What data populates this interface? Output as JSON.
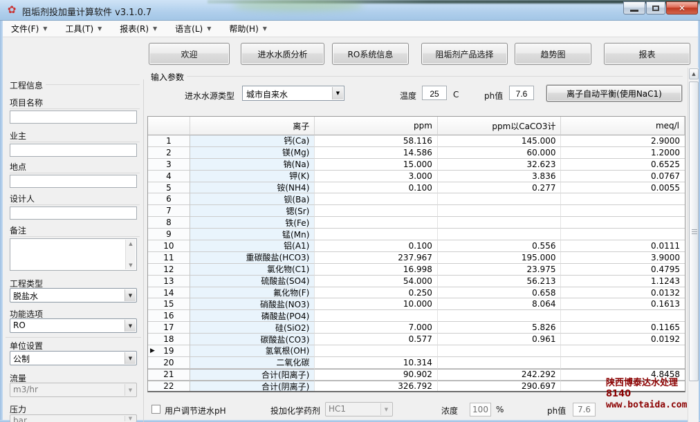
{
  "window": {
    "title": "阻垢剂投加量计算软件 v3.1.0.7",
    "controls": {
      "minimize": "最小化",
      "maximize": "最大化",
      "close": "关闭",
      "close_glyph": "✕"
    }
  },
  "menu": {
    "items": [
      {
        "id": "file",
        "label": "文件(F)"
      },
      {
        "id": "tools",
        "label": "工具(T)"
      },
      {
        "id": "reports",
        "label": "报表(R)"
      },
      {
        "id": "language",
        "label": "语言(L)"
      },
      {
        "id": "help",
        "label": "帮助(H)"
      }
    ]
  },
  "tabs": {
    "items": [
      {
        "id": "welcome",
        "label": "欢迎"
      },
      {
        "id": "feed-water-analysis",
        "label": "进水水质分析"
      },
      {
        "id": "ro-system-info",
        "label": "RO系统信息"
      },
      {
        "id": "antiscalant-selection",
        "label": "阻垢剂产品选择"
      },
      {
        "id": "trend-chart",
        "label": "趋势图"
      },
      {
        "id": "report",
        "label": "报表"
      }
    ]
  },
  "sidebar": {
    "group_label": "工程信息",
    "fields": [
      {
        "id": "project-name",
        "label": "项目名称",
        "value": ""
      },
      {
        "id": "owner",
        "label": "业主",
        "value": ""
      },
      {
        "id": "location",
        "label": "地点",
        "value": ""
      },
      {
        "id": "designer",
        "label": "设计人",
        "value": ""
      }
    ],
    "notes": {
      "label": "备注",
      "value": ""
    },
    "project_type": {
      "label": "工程类型",
      "value": "脱盐水"
    },
    "function_option": {
      "label": "功能选项",
      "value": "RO"
    },
    "units": {
      "label": "单位设置",
      "value": "公制"
    },
    "flow": {
      "label": "流量",
      "value": "m3/hr"
    },
    "pressure": {
      "label": "压力",
      "value": "bar"
    }
  },
  "params": {
    "group_label": "输入参数",
    "source_label": "进水水源类型",
    "source_value": "城市自来水",
    "temp_label": "温度",
    "temp_value": "25",
    "temp_unit": "C",
    "ph_label": "ph值",
    "ph_value": "7.6",
    "balance_button": "离子自动平衡(使用NaC1)"
  },
  "table": {
    "headers": [
      "",
      "离子",
      "ppm",
      "ppm以CaCO3计",
      "meq/l"
    ],
    "rows": [
      {
        "num": "1",
        "ion": "钙(Ca)",
        "ppm": "58.116",
        "caco3": "145.000",
        "meq": "2.9000",
        "marker": false,
        "sum": false
      },
      {
        "num": "2",
        "ion": "镁(Mg)",
        "ppm": "14.586",
        "caco3": "60.000",
        "meq": "1.2000",
        "marker": false,
        "sum": false
      },
      {
        "num": "3",
        "ion": "钠(Na)",
        "ppm": "15.000",
        "caco3": "32.623",
        "meq": "0.6525",
        "marker": false,
        "sum": false
      },
      {
        "num": "4",
        "ion": "钾(K)",
        "ppm": "3.000",
        "caco3": "3.836",
        "meq": "0.0767",
        "marker": false,
        "sum": false
      },
      {
        "num": "5",
        "ion": "铵(NH4)",
        "ppm": "0.100",
        "caco3": "0.277",
        "meq": "0.0055",
        "marker": false,
        "sum": false
      },
      {
        "num": "6",
        "ion": "钡(Ba)",
        "ppm": "",
        "caco3": "",
        "meq": "",
        "marker": false,
        "sum": false
      },
      {
        "num": "7",
        "ion": "锶(Sr)",
        "ppm": "",
        "caco3": "",
        "meq": "",
        "marker": false,
        "sum": false
      },
      {
        "num": "8",
        "ion": "铁(Fe)",
        "ppm": "",
        "caco3": "",
        "meq": "",
        "marker": false,
        "sum": false
      },
      {
        "num": "9",
        "ion": "锰(Mn)",
        "ppm": "",
        "caco3": "",
        "meq": "",
        "marker": false,
        "sum": false
      },
      {
        "num": "10",
        "ion": "铝(A1)",
        "ppm": "0.100",
        "caco3": "0.556",
        "meq": "0.0111",
        "marker": false,
        "sum": false
      },
      {
        "num": "11",
        "ion": "重碳酸盐(HCO3)",
        "ppm": "237.967",
        "caco3": "195.000",
        "meq": "3.9000",
        "marker": false,
        "sum": false
      },
      {
        "num": "12",
        "ion": "氯化物(C1)",
        "ppm": "16.998",
        "caco3": "23.975",
        "meq": "0.4795",
        "marker": false,
        "sum": false
      },
      {
        "num": "13",
        "ion": "硫酸盐(SO4)",
        "ppm": "54.000",
        "caco3": "56.213",
        "meq": "1.1243",
        "marker": false,
        "sum": false
      },
      {
        "num": "14",
        "ion": "氟化物(F)",
        "ppm": "0.250",
        "caco3": "0.658",
        "meq": "0.0132",
        "marker": false,
        "sum": false
      },
      {
        "num": "15",
        "ion": "硝酸盐(NO3)",
        "ppm": "10.000",
        "caco3": "8.064",
        "meq": "0.1613",
        "marker": false,
        "sum": false
      },
      {
        "num": "16",
        "ion": "磷酸盐(PO4)",
        "ppm": "",
        "caco3": "",
        "meq": "",
        "marker": false,
        "sum": false
      },
      {
        "num": "17",
        "ion": "硅(SiO2)",
        "ppm": "7.000",
        "caco3": "5.826",
        "meq": "0.1165",
        "marker": false,
        "sum": false
      },
      {
        "num": "18",
        "ion": "碳酸盐(CO3)",
        "ppm": "0.577",
        "caco3": "0.961",
        "meq": "0.0192",
        "marker": false,
        "sum": false
      },
      {
        "num": "19",
        "ion": "氢氧根(OH)",
        "ppm": "",
        "caco3": "",
        "meq": "",
        "marker": true,
        "sum": false
      },
      {
        "num": "20",
        "ion": "二氧化碳",
        "ppm": "10.314",
        "caco3": "",
        "meq": "",
        "marker": false,
        "sum": false
      },
      {
        "num": "21",
        "ion": "合计(阳离子)",
        "ppm": "90.902",
        "caco3": "242.292",
        "meq": "4.8458",
        "marker": false,
        "sum": true
      },
      {
        "num": "22",
        "ion": "合计(阴离子)",
        "ppm": "326.792",
        "caco3": "290.697",
        "meq": "",
        "marker": false,
        "sum": true
      }
    ]
  },
  "bottom": {
    "checkbox_label": "用户调节进水pH",
    "chemical_label": "投加化学药剂",
    "chemical_value": "HC1",
    "conc_label": "浓度",
    "conc_value": "100",
    "conc_unit": "%",
    "ph_label": "ph值",
    "ph_value": "7.6"
  },
  "watermark": {
    "line1": "陕西博泰达水处理8140",
    "line2": "www.botaida.com",
    "color": "#8b0000"
  }
}
